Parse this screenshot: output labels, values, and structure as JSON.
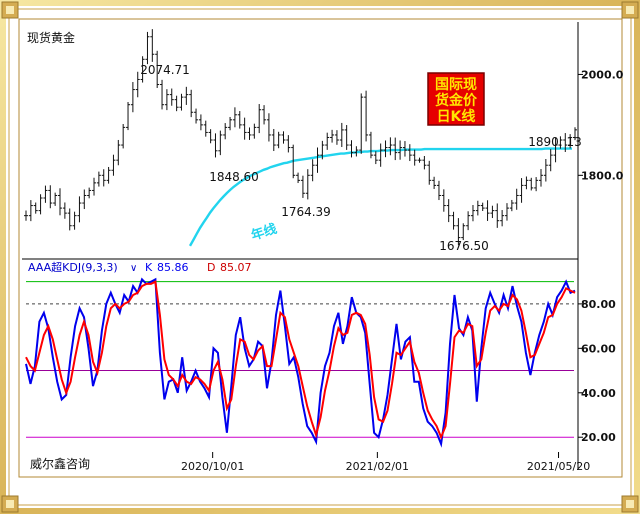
{
  "title": "现货黄金",
  "badge": [
    "国际现",
    "货金价",
    "日K线"
  ],
  "watermark": "威尔鑫咨询",
  "chart_data": [
    {
      "type": "candlestick",
      "title": "现货黄金",
      "y_ticks": [
        2000.0,
        1800.0
      ],
      "y_tick_labels": [
        "2000.0",
        "1800.0"
      ],
      "ylim": [
        1640,
        2100
      ],
      "annotations": [
        {
          "text": "2074.71",
          "value": 2074.71
        },
        {
          "text": "1848.60",
          "value": 1848.6
        },
        {
          "text": "1764.39",
          "value": 1764.39
        },
        {
          "text": "1676.50",
          "value": 1676.5
        },
        {
          "text": "1890. 13",
          "value": 1890.13
        }
      ],
      "ma_label": "年线",
      "price_path": [
        1720,
        1740,
        1730,
        1755,
        1770,
        1745,
        1760,
        1735,
        1725,
        1700,
        1720,
        1745,
        1760,
        1770,
        1785,
        1800,
        1790,
        1810,
        1830,
        1860,
        1895,
        1940,
        1970,
        1990,
        2030,
        2074.71,
        2040,
        1980,
        1940,
        1960,
        1950,
        1935,
        1955,
        1960,
        1925,
        1910,
        1900,
        1885,
        1870,
        1848.6,
        1880,
        1895,
        1910,
        1920,
        1900,
        1885,
        1880,
        1895,
        1930,
        1910,
        1880,
        1860,
        1880,
        1870,
        1855,
        1800,
        1790,
        1764.39,
        1800,
        1820,
        1840,
        1860,
        1875,
        1880,
        1870,
        1890,
        1860,
        1845,
        1850,
        1955,
        1880,
        1840,
        1830,
        1850,
        1855,
        1860,
        1845,
        1855,
        1850,
        1840,
        1830,
        1830,
        1820,
        1790,
        1780,
        1760,
        1740,
        1720,
        1700,
        1676.5,
        1700,
        1720,
        1730,
        1740,
        1735,
        1725,
        1730,
        1710,
        1720,
        1735,
        1745,
        1760,
        1780,
        1790,
        1775,
        1790,
        1800,
        1820,
        1840,
        1860,
        1870,
        1860,
        1875,
        1890.13
      ],
      "ma_path": [
        1660,
        1672,
        1684,
        1696,
        1706,
        1716,
        1726,
        1735,
        1743,
        1751,
        1758,
        1765,
        1771,
        1777,
        1782,
        1787,
        1791,
        1795,
        1799,
        1802,
        1805,
        1808,
        1811,
        1813,
        1816,
        1818,
        1820,
        1822,
        1824,
        1825,
        1827,
        1829,
        1830,
        1831,
        1832,
        1833,
        1834,
        1835,
        1836,
        1837,
        1838,
        1839,
        1840,
        1841,
        1842,
        1843,
        1843,
        1844,
        1845,
        1845,
        1846,
        1846,
        1847,
        1847,
        1848,
        1848,
        1848,
        1849,
        1849,
        1849,
        1850,
        1850,
        1850,
        1850,
        1851,
        1851,
        1851,
        1851,
        1851,
        1851,
        1852,
        1852,
        1852,
        1852,
        1852,
        1852,
        1852,
        1852,
        1852,
        1852,
        1852,
        1852,
        1852,
        1852,
        1852,
        1852,
        1852,
        1852,
        1852,
        1852,
        1852,
        1852,
        1852,
        1852,
        1852,
        1852,
        1852,
        1852,
        1852,
        1852,
        1852,
        1852,
        1852,
        1852,
        1852,
        1852,
        1853,
        1853,
        1853,
        1853,
        1853,
        1853,
        1853,
        1853,
        1853
      ]
    },
    {
      "type": "line",
      "indicator_label": "AAA超KDJ(9,3,3)",
      "legend": [
        {
          "name": "K",
          "value": "85.86",
          "color": "#0000ee"
        },
        {
          "name": "D",
          "value": "85.07",
          "color": "#ff0000"
        }
      ],
      "y_ticks": [
        80.0,
        60.0,
        40.0,
        20.0
      ],
      "y_tick_labels": [
        "80.00",
        "60.00",
        "40.00",
        "20.00"
      ],
      "ylim": [
        12,
        93
      ],
      "hlines": [
        {
          "value": 90,
          "color": "#00bb00",
          "style": "solid"
        },
        {
          "value": 80,
          "color": "#444444",
          "style": "dashed"
        },
        {
          "value": 50,
          "color": "#990099",
          "style": "solid"
        },
        {
          "value": 20,
          "color": "#cc00cc",
          "style": "solid"
        }
      ],
      "x_tick_labels": [
        "2020/10/01",
        "2021/02/01",
        "2021/05/20"
      ],
      "x_tick_positions": [
        0.34,
        0.64,
        0.97
      ],
      "series": [
        {
          "name": "K",
          "color": "#0000ee",
          "values": [
            53,
            44,
            52,
            72,
            76,
            69,
            56,
            45,
            37,
            39,
            56,
            70,
            78,
            74,
            60,
            43,
            50,
            68,
            80,
            85,
            80,
            76,
            84,
            81,
            88,
            85,
            91,
            89,
            90,
            91,
            58,
            37,
            45,
            46,
            40,
            56,
            41,
            45,
            50,
            45,
            42,
            38,
            60,
            58,
            38,
            22,
            43,
            66,
            74,
            60,
            52,
            55,
            63,
            61,
            42,
            54,
            75,
            86,
            70,
            53,
            56,
            47,
            35,
            25,
            22,
            18,
            40,
            52,
            58,
            70,
            76,
            62,
            70,
            83,
            76,
            74,
            67,
            44,
            22,
            20,
            28,
            39,
            55,
            71,
            55,
            63,
            65,
            45,
            45,
            33,
            27,
            25,
            22,
            17,
            31,
            62,
            84,
            69,
            66,
            74,
            68,
            36,
            60,
            78,
            85,
            80,
            76,
            84,
            78,
            88,
            79,
            72,
            58,
            48,
            58,
            66,
            72,
            80,
            75,
            83,
            86,
            90,
            85,
            86
          ]
        },
        {
          "name": "D",
          "color": "#ff0000",
          "values": [
            56,
            52,
            50,
            58,
            66,
            70,
            64,
            55,
            46,
            40,
            45,
            56,
            66,
            72,
            66,
            54,
            49,
            58,
            70,
            78,
            80,
            78,
            80,
            81,
            84,
            85,
            88,
            89,
            89,
            90,
            75,
            55,
            48,
            46,
            43,
            48,
            45,
            44,
            47,
            46,
            44,
            41,
            50,
            54,
            46,
            33,
            37,
            52,
            64,
            63,
            57,
            55,
            59,
            61,
            52,
            52,
            64,
            76,
            74,
            64,
            58,
            52,
            43,
            34,
            27,
            21,
            29,
            41,
            50,
            61,
            69,
            66,
            67,
            75,
            76,
            75,
            71,
            57,
            38,
            28,
            27,
            32,
            44,
            58,
            57,
            60,
            63,
            54,
            49,
            40,
            32,
            28,
            25,
            20,
            25,
            44,
            65,
            68,
            67,
            71,
            70,
            52,
            55,
            67,
            77,
            79,
            77,
            80,
            79,
            84,
            82,
            77,
            67,
            56,
            57,
            62,
            67,
            74,
            75,
            80,
            83,
            87,
            86,
            85
          ]
        }
      ]
    }
  ]
}
